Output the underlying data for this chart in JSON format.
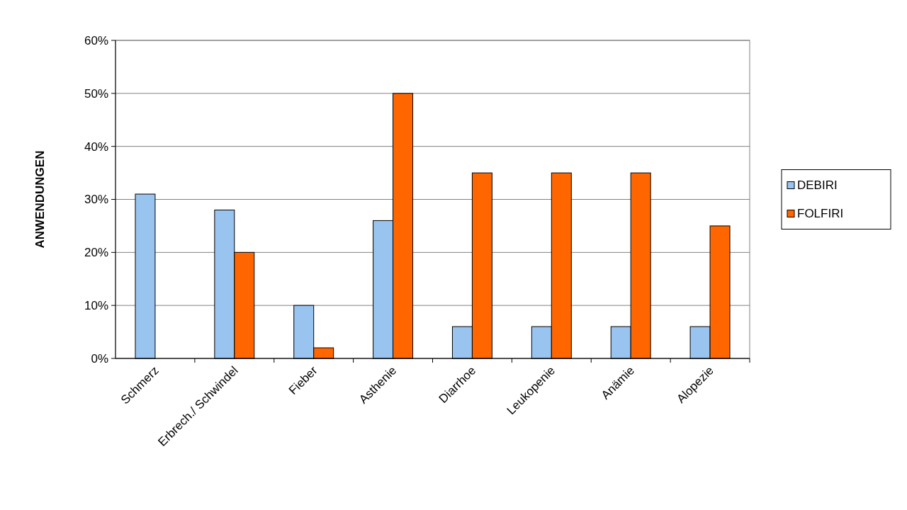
{
  "chart_data": {
    "type": "bar",
    "ylabel": "ANWENDUNGEN",
    "categories": [
      "Schmerz",
      "Erbrech./ Schwindel",
      "Fieber",
      "Asthenie",
      "Diarrhoe",
      "Leukopenie",
      "Anämie",
      "Alopezie"
    ],
    "series": [
      {
        "name": "DEBIRI",
        "color": "#99c4f0",
        "values": [
          31,
          28,
          10,
          26,
          6,
          6,
          6,
          6
        ]
      },
      {
        "name": "FOLFIRI",
        "color": "#ff6600",
        "values": [
          0,
          20,
          2,
          50,
          35,
          35,
          35,
          25
        ]
      }
    ],
    "ylim": [
      0,
      60
    ],
    "yticks": [
      {
        "value": 0,
        "label": "0%"
      },
      {
        "value": 10,
        "label": "10%"
      },
      {
        "value": 20,
        "label": "20%"
      },
      {
        "value": 30,
        "label": "30%"
      },
      {
        "value": 40,
        "label": "40%"
      },
      {
        "value": 50,
        "label": "50%"
      },
      {
        "value": 60,
        "label": "60%"
      }
    ],
    "grid": "y",
    "legend": "right"
  }
}
